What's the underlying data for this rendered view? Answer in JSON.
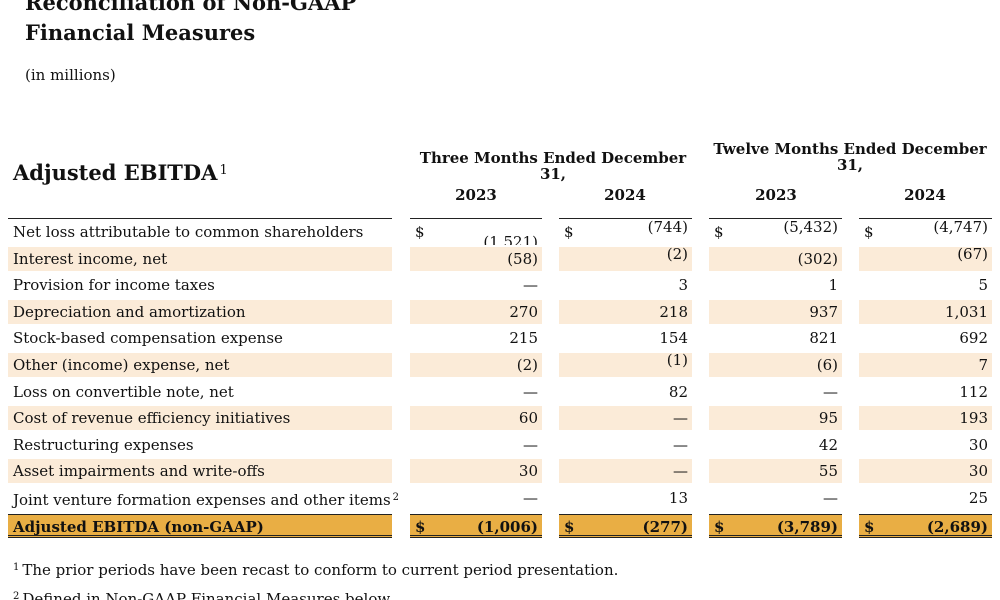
{
  "header": {
    "title_line1": "Reconciliation of Non-GAAP",
    "title_line2": "Financial Measures",
    "units": "(in millions)"
  },
  "table": {
    "section_title": "Adjusted EBITDA",
    "section_title_note": "1",
    "periods": [
      {
        "label": "Three Months Ended December 31,"
      },
      {
        "label": "Twelve Months Ended December 31,"
      }
    ],
    "years": [
      "2023",
      "2024",
      "2023",
      "2024"
    ],
    "currency_symbol": "$",
    "rows": [
      {
        "label": "Net loss attributable to common shareholders",
        "note": "",
        "values": [
          "(1,521)",
          "(744)",
          "(5,432)",
          "(4,747)"
        ],
        "currency": true,
        "shaded": false
      },
      {
        "label": "Interest income, net",
        "note": "",
        "values": [
          "(58)",
          "(2)",
          "(302)",
          "(67)"
        ],
        "currency": false,
        "shaded": true
      },
      {
        "label": "Provision for income taxes",
        "note": "",
        "values": [
          "—",
          "3",
          "1",
          "5"
        ],
        "currency": false,
        "shaded": false
      },
      {
        "label": "Depreciation and amortization",
        "note": "",
        "values": [
          "270",
          "218",
          "937",
          "1,031"
        ],
        "currency": false,
        "shaded": true
      },
      {
        "label": "Stock-based compensation expense",
        "note": "",
        "values": [
          "215",
          "154",
          "821",
          "692"
        ],
        "currency": false,
        "shaded": false
      },
      {
        "label": "Other (income) expense, net",
        "note": "",
        "values": [
          "(2)",
          "(1)",
          "(6)",
          "7"
        ],
        "currency": false,
        "shaded": true
      },
      {
        "label": "Loss on convertible note, net",
        "note": "",
        "values": [
          "—",
          "82",
          "—",
          "112"
        ],
        "currency": false,
        "shaded": false
      },
      {
        "label": "Cost of revenue efficiency initiatives",
        "note": "",
        "values": [
          "60",
          "—",
          "95",
          "193"
        ],
        "currency": false,
        "shaded": true
      },
      {
        "label": "Restructuring expenses",
        "note": "",
        "values": [
          "—",
          "—",
          "42",
          "30"
        ],
        "currency": false,
        "shaded": false
      },
      {
        "label": "Asset impairments and write-offs",
        "note": "",
        "values": [
          "30",
          "—",
          "55",
          "30"
        ],
        "currency": false,
        "shaded": true
      },
      {
        "label": "Joint venture formation expenses and other items",
        "note": "2",
        "values": [
          "—",
          "13",
          "—",
          "25"
        ],
        "currency": false,
        "shaded": false
      }
    ],
    "total": {
      "label": "Adjusted EBITDA (non-GAAP)",
      "values": [
        "(1,006)",
        "(277)",
        "(3,789)",
        "(2,689)"
      ]
    }
  },
  "footnotes": [
    {
      "marker": "1",
      "text": "The prior periods have been recast to conform to current period presentation."
    },
    {
      "marker": "2",
      "text": "Defined in Non-GAAP Financial Measures below."
    }
  ],
  "colors": {
    "row_shade": "#fbebd8",
    "total_fill": "#e9ae44"
  }
}
